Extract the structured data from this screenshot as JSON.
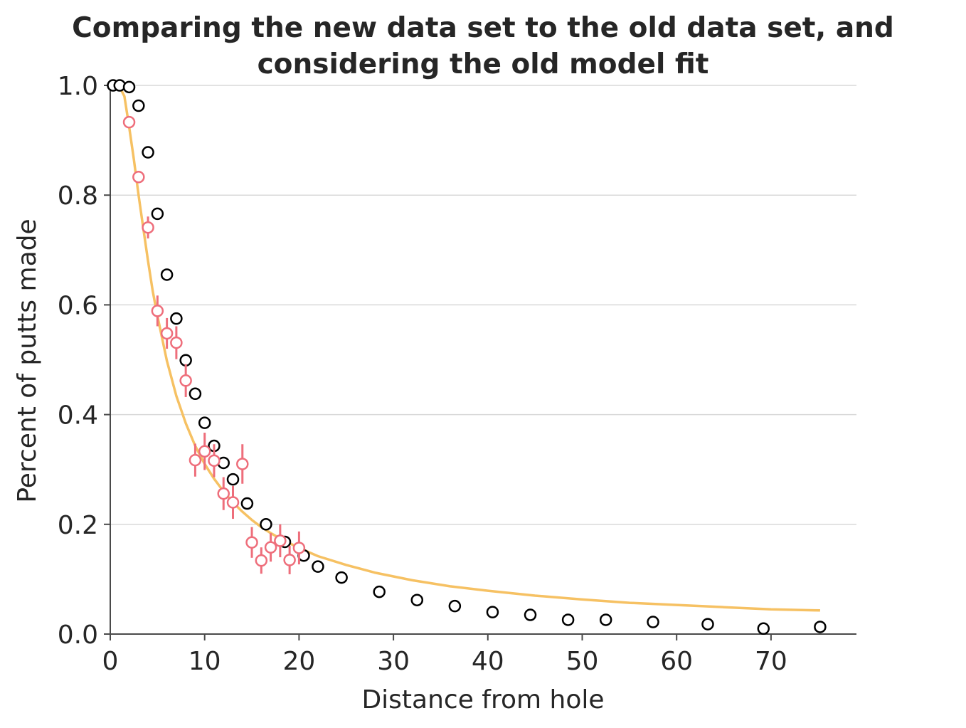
{
  "chart_data": {
    "type": "scatter",
    "title_lines": [
      "Comparing the new data set to the old data set, and",
      "considering the old model fit"
    ],
    "xlabel": "Distance from hole",
    "ylabel": "Percent of putts made",
    "xlim": [
      0,
      79
    ],
    "ylim": [
      0,
      1.0
    ],
    "xticks": [
      0,
      10,
      20,
      30,
      40,
      50,
      60,
      70
    ],
    "yticks": [
      0.0,
      0.2,
      0.4,
      0.6,
      0.8,
      1.0
    ],
    "grid": "horizontal",
    "colors": {
      "old_data": "#000000",
      "new_data": "#ee6e7b",
      "model": "#f6c163",
      "grid": "#d8d8d8",
      "axis": "#4a4a4a"
    },
    "series": [
      {
        "kind": "points",
        "x": [
          0.3,
          1.0,
          2.0,
          3.0,
          4.0,
          5.0,
          6.0,
          7.0,
          8.0,
          9.0,
          10.0,
          11.0,
          12.0,
          13.0,
          14.5,
          16.5,
          18.5,
          20.5,
          22.0,
          24.5,
          28.5,
          32.5,
          36.5,
          40.5,
          44.5,
          48.5,
          52.5,
          57.5,
          63.3,
          69.2,
          75.2
        ],
        "y": [
          1.0,
          1.0,
          0.997,
          0.963,
          0.878,
          0.766,
          0.655,
          0.575,
          0.499,
          0.438,
          0.385,
          0.343,
          0.312,
          0.282,
          0.238,
          0.2,
          0.168,
          0.143,
          0.123,
          0.103,
          0.077,
          0.062,
          0.051,
          0.04,
          0.035,
          0.026,
          0.026,
          0.022,
          0.018,
          0.01,
          0.013
        ]
      },
      {
        "kind": "points_with_errorbars",
        "x": [
          2,
          3,
          4,
          5,
          6,
          7,
          8,
          9,
          10,
          11,
          12,
          13,
          14,
          15,
          16,
          17,
          18,
          19,
          20
        ],
        "y": [
          0.933,
          0.833,
          0.741,
          0.589,
          0.548,
          0.531,
          0.462,
          0.317,
          0.333,
          0.316,
          0.256,
          0.24,
          0.31,
          0.167,
          0.134,
          0.158,
          0.17,
          0.135,
          0.157
        ],
        "err": [
          0.01,
          0.01,
          0.02,
          0.028,
          0.028,
          0.03,
          0.03,
          0.03,
          0.034,
          0.03,
          0.03,
          0.03,
          0.036,
          0.028,
          0.024,
          0.026,
          0.03,
          0.026,
          0.03
        ]
      },
      {
        "kind": "line",
        "x_start": 0.3,
        "x_end": 75.2,
        "x": [
          0.3,
          0.6,
          1.0,
          1.5,
          2.0,
          2.5,
          3.0,
          3.5,
          4.0,
          4.5,
          5.0,
          6.0,
          7.0,
          8.0,
          9.0,
          10.0,
          11.0,
          12.0,
          13.0,
          14.0,
          15.0,
          16.0,
          17.0,
          18.0,
          20.0,
          22.0,
          25.0,
          28.0,
          32.0,
          36.0,
          40.0,
          45.0,
          50.0,
          55.0,
          60.0,
          65.0,
          70.0,
          75.2
        ],
        "y": [
          1.0,
          0.999,
          0.997,
          0.98,
          0.925,
          0.865,
          0.8,
          0.74,
          0.68,
          0.625,
          0.58,
          0.498,
          0.434,
          0.384,
          0.343,
          0.31,
          0.283,
          0.26,
          0.24,
          0.223,
          0.208,
          0.195,
          0.184,
          0.174,
          0.157,
          0.142,
          0.126,
          0.112,
          0.098,
          0.087,
          0.079,
          0.07,
          0.063,
          0.057,
          0.053,
          0.049,
          0.045,
          0.043
        ]
      }
    ]
  }
}
